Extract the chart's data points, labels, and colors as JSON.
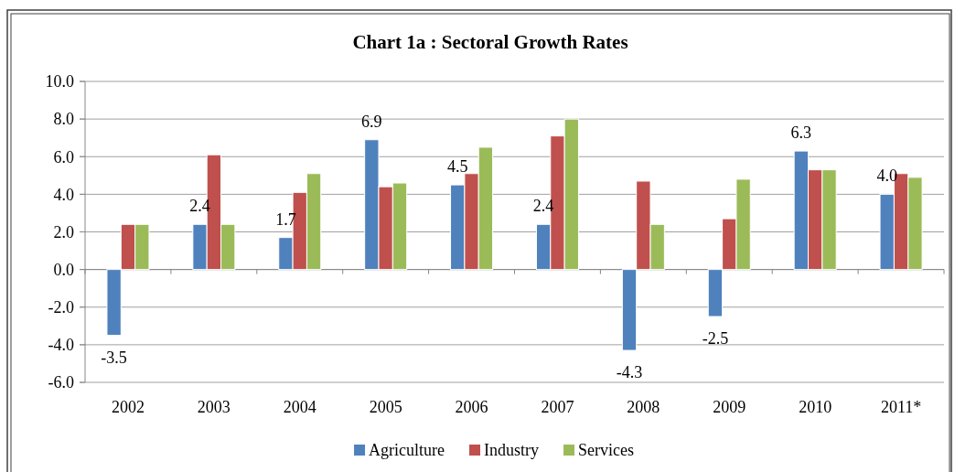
{
  "chart_data": {
    "type": "bar",
    "title": "Chart 1a : Sectoral Growth Rates",
    "categories": [
      "2002",
      "2003",
      "2004",
      "2005",
      "2006",
      "2007",
      "2008",
      "2009",
      "2010",
      "2011*"
    ],
    "series": [
      {
        "name": "Agriculture",
        "color": "#4f81bd",
        "values": [
          -3.5,
          2.4,
          1.7,
          6.9,
          4.5,
          2.4,
          -4.3,
          -2.5,
          6.3,
          4.0
        ],
        "value_labels": [
          "-3.5",
          "2.4",
          "1.7",
          "6.9",
          "4.5",
          "2.4",
          "-4.3",
          "-2.5",
          "6.3",
          "4.0"
        ]
      },
      {
        "name": "Industry",
        "color": "#c0504d",
        "values": [
          2.4,
          6.1,
          4.1,
          4.4,
          5.1,
          7.1,
          4.7,
          2.7,
          5.3,
          5.1
        ]
      },
      {
        "name": "Services",
        "color": "#9bbb59",
        "values": [
          2.4,
          2.4,
          5.1,
          4.6,
          6.5,
          8.0,
          2.4,
          4.8,
          5.3,
          4.9
        ]
      }
    ],
    "ylim": [
      -6,
      10
    ],
    "yticks": [
      {
        "value": -6,
        "label": "-6.0"
      },
      {
        "value": -4,
        "label": "-4.0"
      },
      {
        "value": -2,
        "label": "-2.0"
      },
      {
        "value": 0,
        "label": "0.0"
      },
      {
        "value": 2,
        "label": "2.0"
      },
      {
        "value": 4,
        "label": "4.0"
      },
      {
        "value": 6,
        "label": "6.0"
      },
      {
        "value": 8,
        "label": "8.0"
      },
      {
        "value": 10,
        "label": "10.0"
      }
    ],
    "grid": "y",
    "legend": "bottom"
  }
}
